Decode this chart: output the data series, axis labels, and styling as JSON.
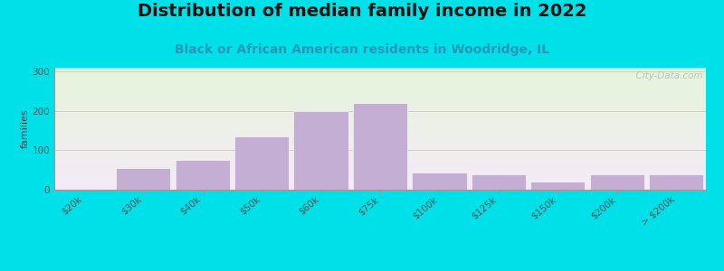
{
  "title": "Distribution of median family income in 2022",
  "subtitle": "Black or African American residents in Woodridge, IL",
  "ylabel": "families",
  "categories": [
    "$20k",
    "$30k",
    "$40k",
    "$50k",
    "$60k",
    "$75k",
    "$100k",
    "$125k",
    "$150k",
    "$200k",
    "> $200k"
  ],
  "values": [
    3,
    55,
    75,
    135,
    200,
    220,
    43,
    40,
    20,
    38,
    38
  ],
  "bar_color": "#c4aed4",
  "ylim": [
    0,
    310
  ],
  "yticks": [
    0,
    100,
    200,
    300
  ],
  "background_top_color": "#e6f5dc",
  "background_bottom_color": "#f5eef8",
  "figure_bg": "#00e0e8",
  "title_fontsize": 14,
  "subtitle_fontsize": 10,
  "subtitle_color": "#2299bb",
  "watermark": "  City-Data.com",
  "grid_color": "#cccccc",
  "tick_label_fontsize": 7.5,
  "ylabel_fontsize": 8
}
